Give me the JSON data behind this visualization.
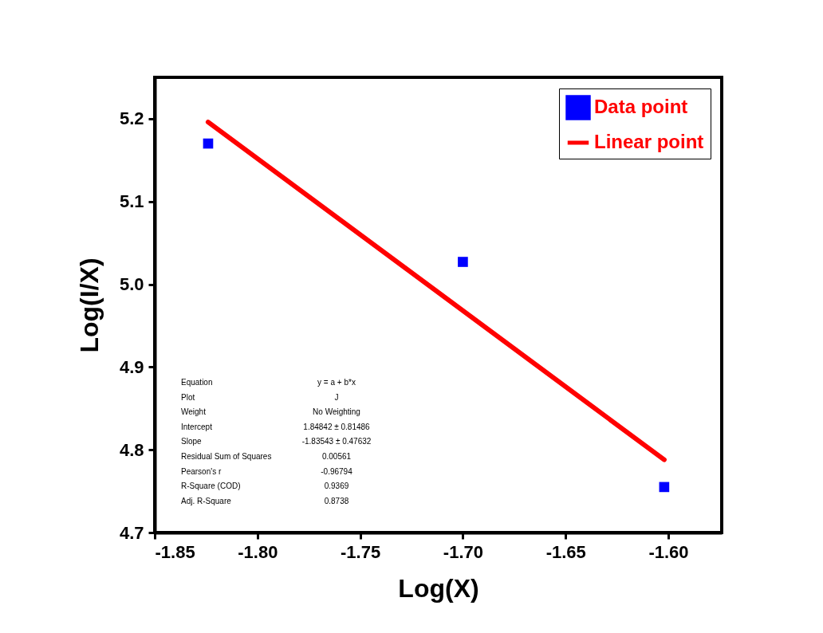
{
  "chart_data": {
    "type": "scatter",
    "xlabel": "Log(X)",
    "ylabel": "Log(I/X)",
    "xlim": [
      -1.85,
      -1.574
    ],
    "ylim": [
      4.7,
      5.25
    ],
    "xticks": [
      -1.85,
      {
        "value": -1.8,
        "label": "-1.80"
      },
      -1.75,
      {
        "value": -1.7,
        "label": "-1.70"
      },
      -1.65,
      {
        "value": -1.6,
        "label": "-1.60"
      }
    ],
    "yticks": [
      4.7,
      4.8,
      4.9,
      {
        "value": 5.0,
        "label": "5.0"
      },
      5.1,
      5.2
    ],
    "grid": false,
    "legend": "top right",
    "series": [
      {
        "name": "Data point",
        "color": "#0000ff",
        "marker": "square",
        "x": [
          -1.824,
          -1.7,
          -1.602
        ],
        "values": [
          5.17,
          5.027,
          4.755
        ]
      },
      {
        "name": "Linear point",
        "type": "line",
        "color": "#ff0000",
        "marker": "none",
        "line_style": "solid",
        "x": [
          -1.824,
          -1.602
        ],
        "values": [
          5.196,
          4.788
        ]
      }
    ],
    "annotations": [
      "Equation",
      "y = a + b*x",
      "Plot",
      "J",
      "Weight",
      "No Weighting",
      "Intercept",
      "1.84842 ± 0.81486",
      "Slope",
      "-1.83543 ± 0.47632",
      "Residual Sum of Squares",
      "0.00561",
      "Pearson's r",
      "-0.96794",
      "R-Square (COD)",
      "0.9369",
      "Adj. R-Square",
      "0.8738"
    ]
  }
}
